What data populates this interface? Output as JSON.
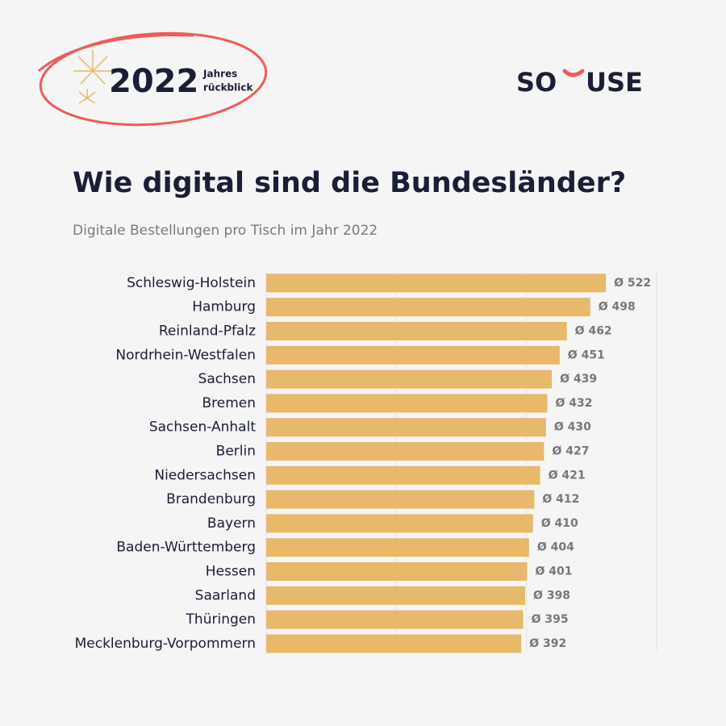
{
  "header": {
    "year": "2022",
    "badge_line1": "Jahres",
    "badge_line2": "rückblick",
    "logo_left": "SO",
    "logo_right": "USE"
  },
  "chart_data": {
    "type": "bar",
    "orientation": "horizontal",
    "title": "Wie digital sind die Bundesländer?",
    "subtitle": "Digitale Bestellungen pro Tisch im Jahr 2022",
    "categories": [
      "Schleswig-Holstein",
      "Hamburg",
      "Reinland-Pfalz",
      "Nordrhein-Westfalen",
      "Sachsen",
      "Bremen",
      "Sachsen-Anhalt",
      "Berlin",
      "Niedersachsen",
      "Brandenburg",
      "Bayern",
      "Baden-Württemberg",
      "Hessen",
      "Saarland",
      "Thüringen",
      "Mecklenburg-Vorpommern"
    ],
    "values": [
      522,
      498,
      462,
      451,
      439,
      432,
      430,
      427,
      421,
      412,
      410,
      404,
      401,
      398,
      395,
      392
    ],
    "value_labels": [
      "Ø 522",
      "Ø 498",
      "Ø 462",
      "Ø 451",
      "Ø 439",
      "Ø 432",
      "Ø 430",
      "Ø 427",
      "Ø 421",
      "Ø 412",
      "Ø 410",
      "Ø 404",
      "Ø 401",
      "Ø 398",
      "Ø 395",
      "Ø 392"
    ],
    "color": "#e6b96b",
    "xlim": [
      0,
      600
    ],
    "xticks": [
      0,
      200,
      400,
      600
    ],
    "grid": true
  }
}
